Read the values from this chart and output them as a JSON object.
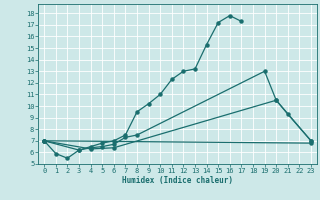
{
  "xlabel": "Humidex (Indice chaleur)",
  "xlim": [
    -0.5,
    23.5
  ],
  "ylim": [
    5.0,
    18.8
  ],
  "yticks": [
    5,
    6,
    7,
    8,
    9,
    10,
    11,
    12,
    13,
    14,
    15,
    16,
    17,
    18
  ],
  "xticks": [
    0,
    1,
    2,
    3,
    4,
    5,
    6,
    7,
    8,
    9,
    10,
    11,
    12,
    13,
    14,
    15,
    16,
    17,
    18,
    19,
    20,
    21,
    22,
    23
  ],
  "bg_color": "#cde8e8",
  "grid_color": "#ffffff",
  "line_color": "#1a6e6e",
  "line1_x": [
    0,
    1,
    2,
    3,
    4,
    5,
    6,
    7,
    8,
    9,
    10,
    11,
    12,
    13,
    14,
    15,
    16,
    17
  ],
  "line1_y": [
    7.0,
    5.9,
    5.5,
    6.2,
    6.5,
    6.8,
    7.0,
    7.5,
    9.5,
    10.2,
    11.0,
    12.3,
    13.0,
    13.2,
    15.3,
    17.2,
    17.8,
    17.3
  ],
  "line2_x": [
    0,
    3,
    4,
    5,
    6,
    7,
    8,
    19,
    20,
    21,
    23
  ],
  "line2_y": [
    7.0,
    6.2,
    6.4,
    6.5,
    6.7,
    7.3,
    7.5,
    13.0,
    10.5,
    9.3,
    7.0
  ],
  "line3_x": [
    0,
    4,
    6,
    20,
    23
  ],
  "line3_y": [
    7.0,
    6.3,
    6.4,
    10.5,
    7.0
  ],
  "line4_x": [
    0,
    23
  ],
  "line4_y": [
    7.0,
    6.8
  ]
}
